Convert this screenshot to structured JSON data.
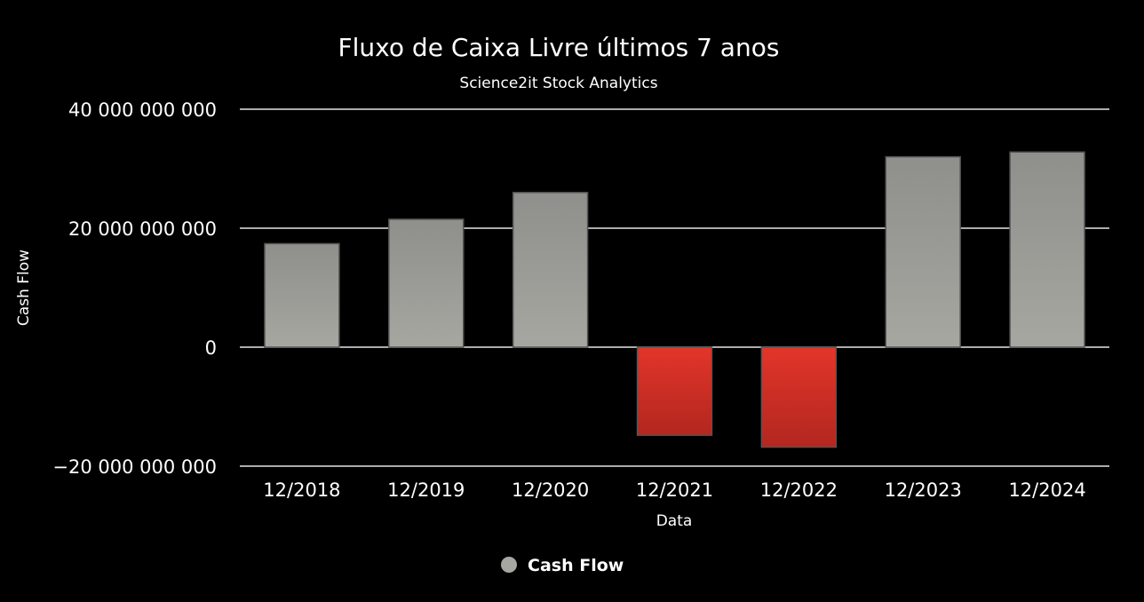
{
  "chart_data": {
    "type": "bar",
    "title": "Fluxo de Caixa Livre últimos 7 anos",
    "subtitle": "Science2it Stock Analytics",
    "xlabel": "Data",
    "ylabel": "Cash Flow",
    "categories": [
      "12/2018",
      "12/2019",
      "12/2020",
      "12/2021",
      "12/2022",
      "12/2023",
      "12/2024"
    ],
    "series": [
      {
        "name": "Cash Flow",
        "values": [
          17400000000,
          21500000000,
          26000000000,
          -14800000000,
          -16800000000,
          32000000000,
          32800000000
        ]
      }
    ],
    "ylim": [
      -20000000000,
      40000000000
    ],
    "yticks": [
      -20000000000,
      0,
      20000000000,
      40000000000
    ],
    "ytick_labels": [
      "−20 000 000 000",
      "0",
      "20 000 000 000",
      "40 000 000 000"
    ],
    "grid": true,
    "legend_position": "bottom-center",
    "colors": {
      "background": "#000000",
      "text": "#ffffff",
      "grid": "#e6e6e6",
      "positive_top": "#8f8f8b",
      "positive_bottom": "#a6a7a1",
      "negative_top": "#e3352a",
      "negative_bottom": "#b2271f",
      "bar_border": "#555555",
      "legend_marker": "#a6a7a1"
    }
  }
}
